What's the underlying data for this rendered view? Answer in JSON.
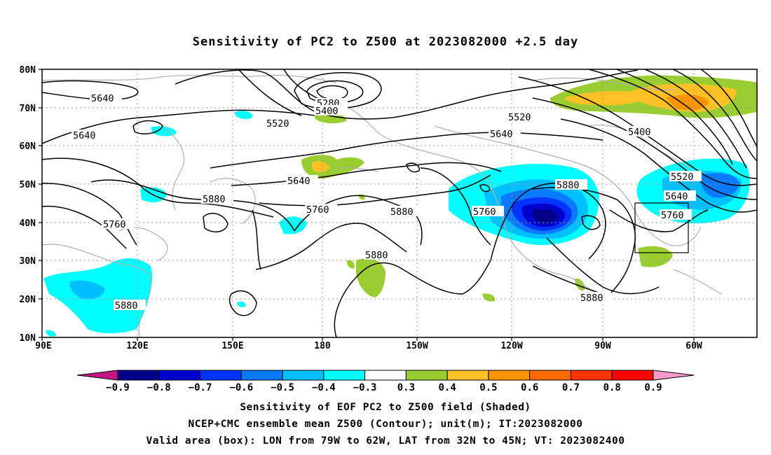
{
  "title": "Sensitivity of PC2 to Z500 at 2023082000 +2.5 day",
  "map": {
    "lat_labels": [
      "80N",
      "70N",
      "60N",
      "50N",
      "40N",
      "30N",
      "20N",
      "10N"
    ],
    "lon_labels": [
      "90E",
      "120E",
      "150E",
      "180",
      "150W",
      "120W",
      "90W",
      "60W"
    ],
    "contour_labels": [
      {
        "text": "5640"
      },
      {
        "text": "5640"
      },
      {
        "text": "5760"
      },
      {
        "text": "5880"
      },
      {
        "text": "5520"
      },
      {
        "text": "5280"
      },
      {
        "text": "5400"
      },
      {
        "text": "5640"
      },
      {
        "text": "5760"
      },
      {
        "text": "5880"
      },
      {
        "text": "5880"
      },
      {
        "text": "5880"
      },
      {
        "text": "5760"
      },
      {
        "text": "5880"
      },
      {
        "text": "5520"
      },
      {
        "text": "5640"
      },
      {
        "text": "5400"
      },
      {
        "text": "5520"
      },
      {
        "text": "5640"
      },
      {
        "text": "5760"
      },
      {
        "text": "5880"
      }
    ],
    "valid_box": {
      "lon_west": "79W",
      "lon_east": "62W",
      "lat_south": "32N",
      "lat_north": "45N"
    }
  },
  "colorbar": {
    "labels": [
      "-0.9",
      "-0.8",
      "-0.7",
      "-0.6",
      "-0.5",
      "-0.4",
      "-0.3",
      "0.3",
      "0.4",
      "0.5",
      "0.6",
      "0.7",
      "0.8",
      "0.9"
    ],
    "colors": [
      "#c71585",
      "#00008b",
      "#0000cd",
      "#0033ff",
      "#0a7bff",
      "#00bfff",
      "#00ffff",
      "#ffffff",
      "#9acd32",
      "#ffc125",
      "#ff9400",
      "#ff6a00",
      "#ff3300",
      "#ff0000",
      "#ff99cc"
    ]
  },
  "captions": {
    "line1": "Sensitivity of EOF PC2 to Z500 field (Shaded)",
    "line2": "NCEP+CMC ensemble mean Z500 (Contour); unit(m); IT:2023082000",
    "line3": "Valid area (box): LON from 79W to 62W, LAT from 32N to 45N; VT: 2023082400"
  }
}
